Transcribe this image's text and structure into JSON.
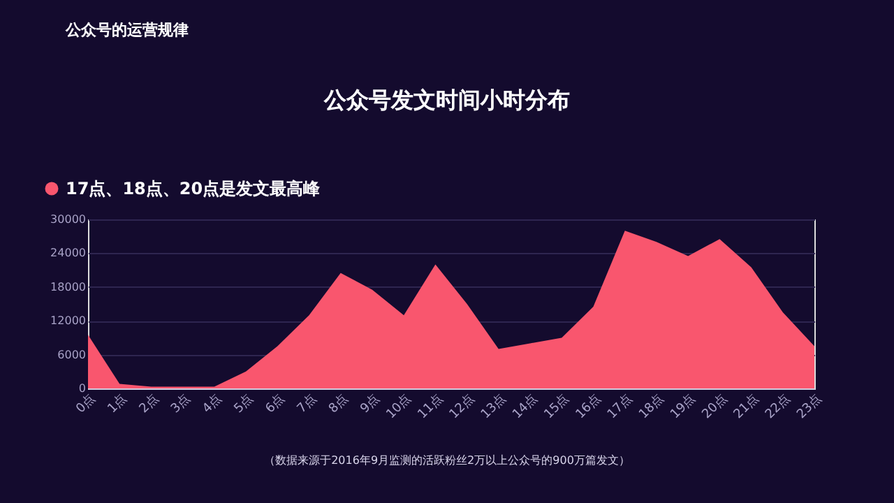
{
  "chart_data": {
    "type": "area",
    "title": "公众号发文时间小时分布",
    "categories": [
      "0点",
      "1点",
      "2点",
      "3点",
      "4点",
      "5点",
      "6点",
      "7点",
      "8点",
      "9点",
      "10点",
      "11点",
      "12点",
      "13点",
      "14点",
      "15点",
      "16点",
      "17点",
      "18点",
      "19点",
      "20点",
      "21点",
      "22点",
      "23点"
    ],
    "series": [
      {
        "name": "17点、18点、20点是发文最高峰",
        "color": "#f9566e",
        "values": [
          9500,
          800,
          300,
          300,
          300,
          3000,
          7500,
          13000,
          20500,
          17500,
          13000,
          22000,
          15000,
          7000,
          8000,
          9000,
          14500,
          28000,
          26000,
          23500,
          26500,
          21500,
          13500,
          7500
        ]
      }
    ],
    "ylim": [
      0,
      30000
    ],
    "yticks": [
      0,
      6000,
      12000,
      18000,
      24000,
      30000
    ],
    "grid": "y",
    "legend": "top left",
    "annotations": [
      "公众号的运营规律",
      "（数据来源于2016年9月监测的活跃粉丝2万以上公众号的900万篇发文）"
    ]
  }
}
